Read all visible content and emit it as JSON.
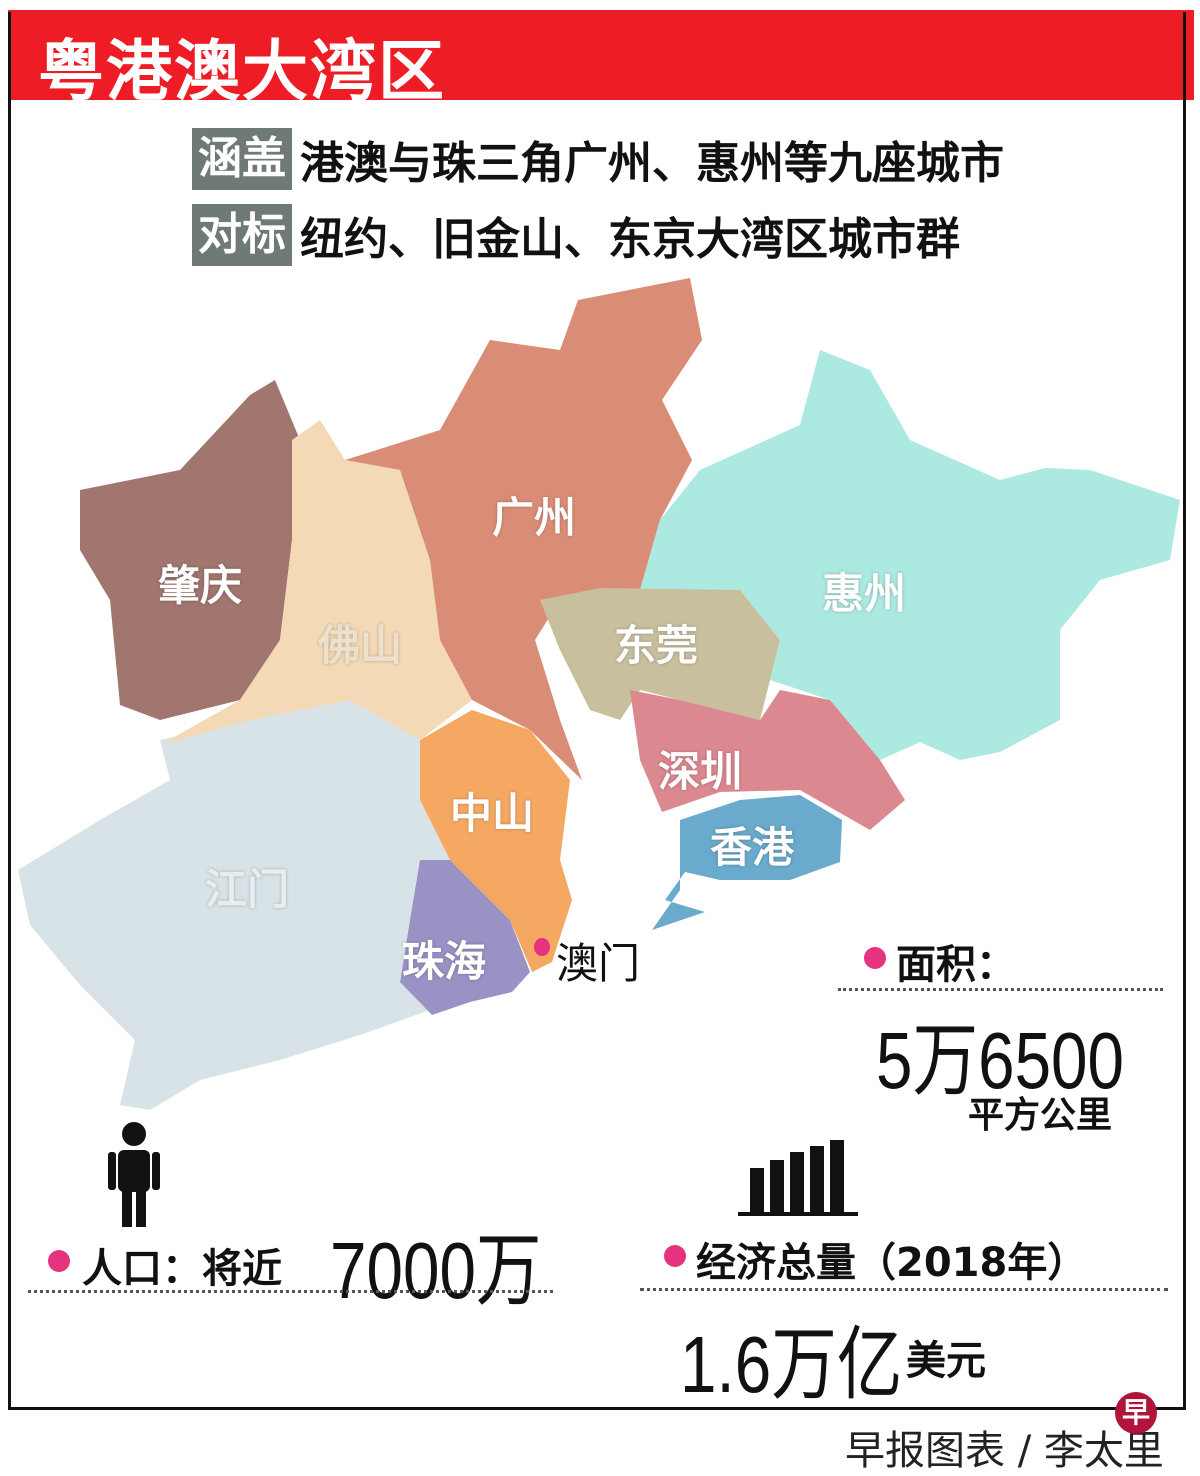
{
  "title": "粤港澳大湾区",
  "rows": [
    {
      "tag": "涵盖",
      "text": "港澳与珠三角广州、惠州等九座城市"
    },
    {
      "tag": "对标",
      "text": "纽约、旧金山、东京大湾区城市群"
    }
  ],
  "cities": {
    "zhaoqing": {
      "name": "肇庆",
      "color": "#a0766f"
    },
    "foshan": {
      "name": "佛山",
      "color": "#f3d9b5"
    },
    "guangzhou": {
      "name": "广州",
      "color": "#da8d76"
    },
    "huizhou": {
      "name": "惠州",
      "color": "#ace9e0"
    },
    "dongguan": {
      "name": "东莞",
      "color": "#c8bf9d"
    },
    "shenzhen": {
      "name": "深圳",
      "color": "#dc8890"
    },
    "hongkong": {
      "name": "香港",
      "color": "#6aaacc"
    },
    "zhongshan": {
      "name": "中山",
      "color": "#f5a862"
    },
    "zhuhai": {
      "name": "珠海",
      "color": "#9a92c5"
    },
    "jiangmen": {
      "name": "江门",
      "color": "#d7e3e6"
    },
    "macau": {
      "name": "澳门"
    }
  },
  "stats": {
    "area": {
      "label": "面积：",
      "value": "5万6500",
      "unit": "平方公里"
    },
    "population": {
      "label": "人口：将近",
      "value": "7000万"
    },
    "economy": {
      "label": "经济总量（2018年）",
      "value": "1.6万亿",
      "unit": "美元"
    }
  },
  "accent_color": "#e5337f",
  "header_color": "#ee1c25",
  "credit": "早报图表 / 李太里",
  "logo_text": "早"
}
